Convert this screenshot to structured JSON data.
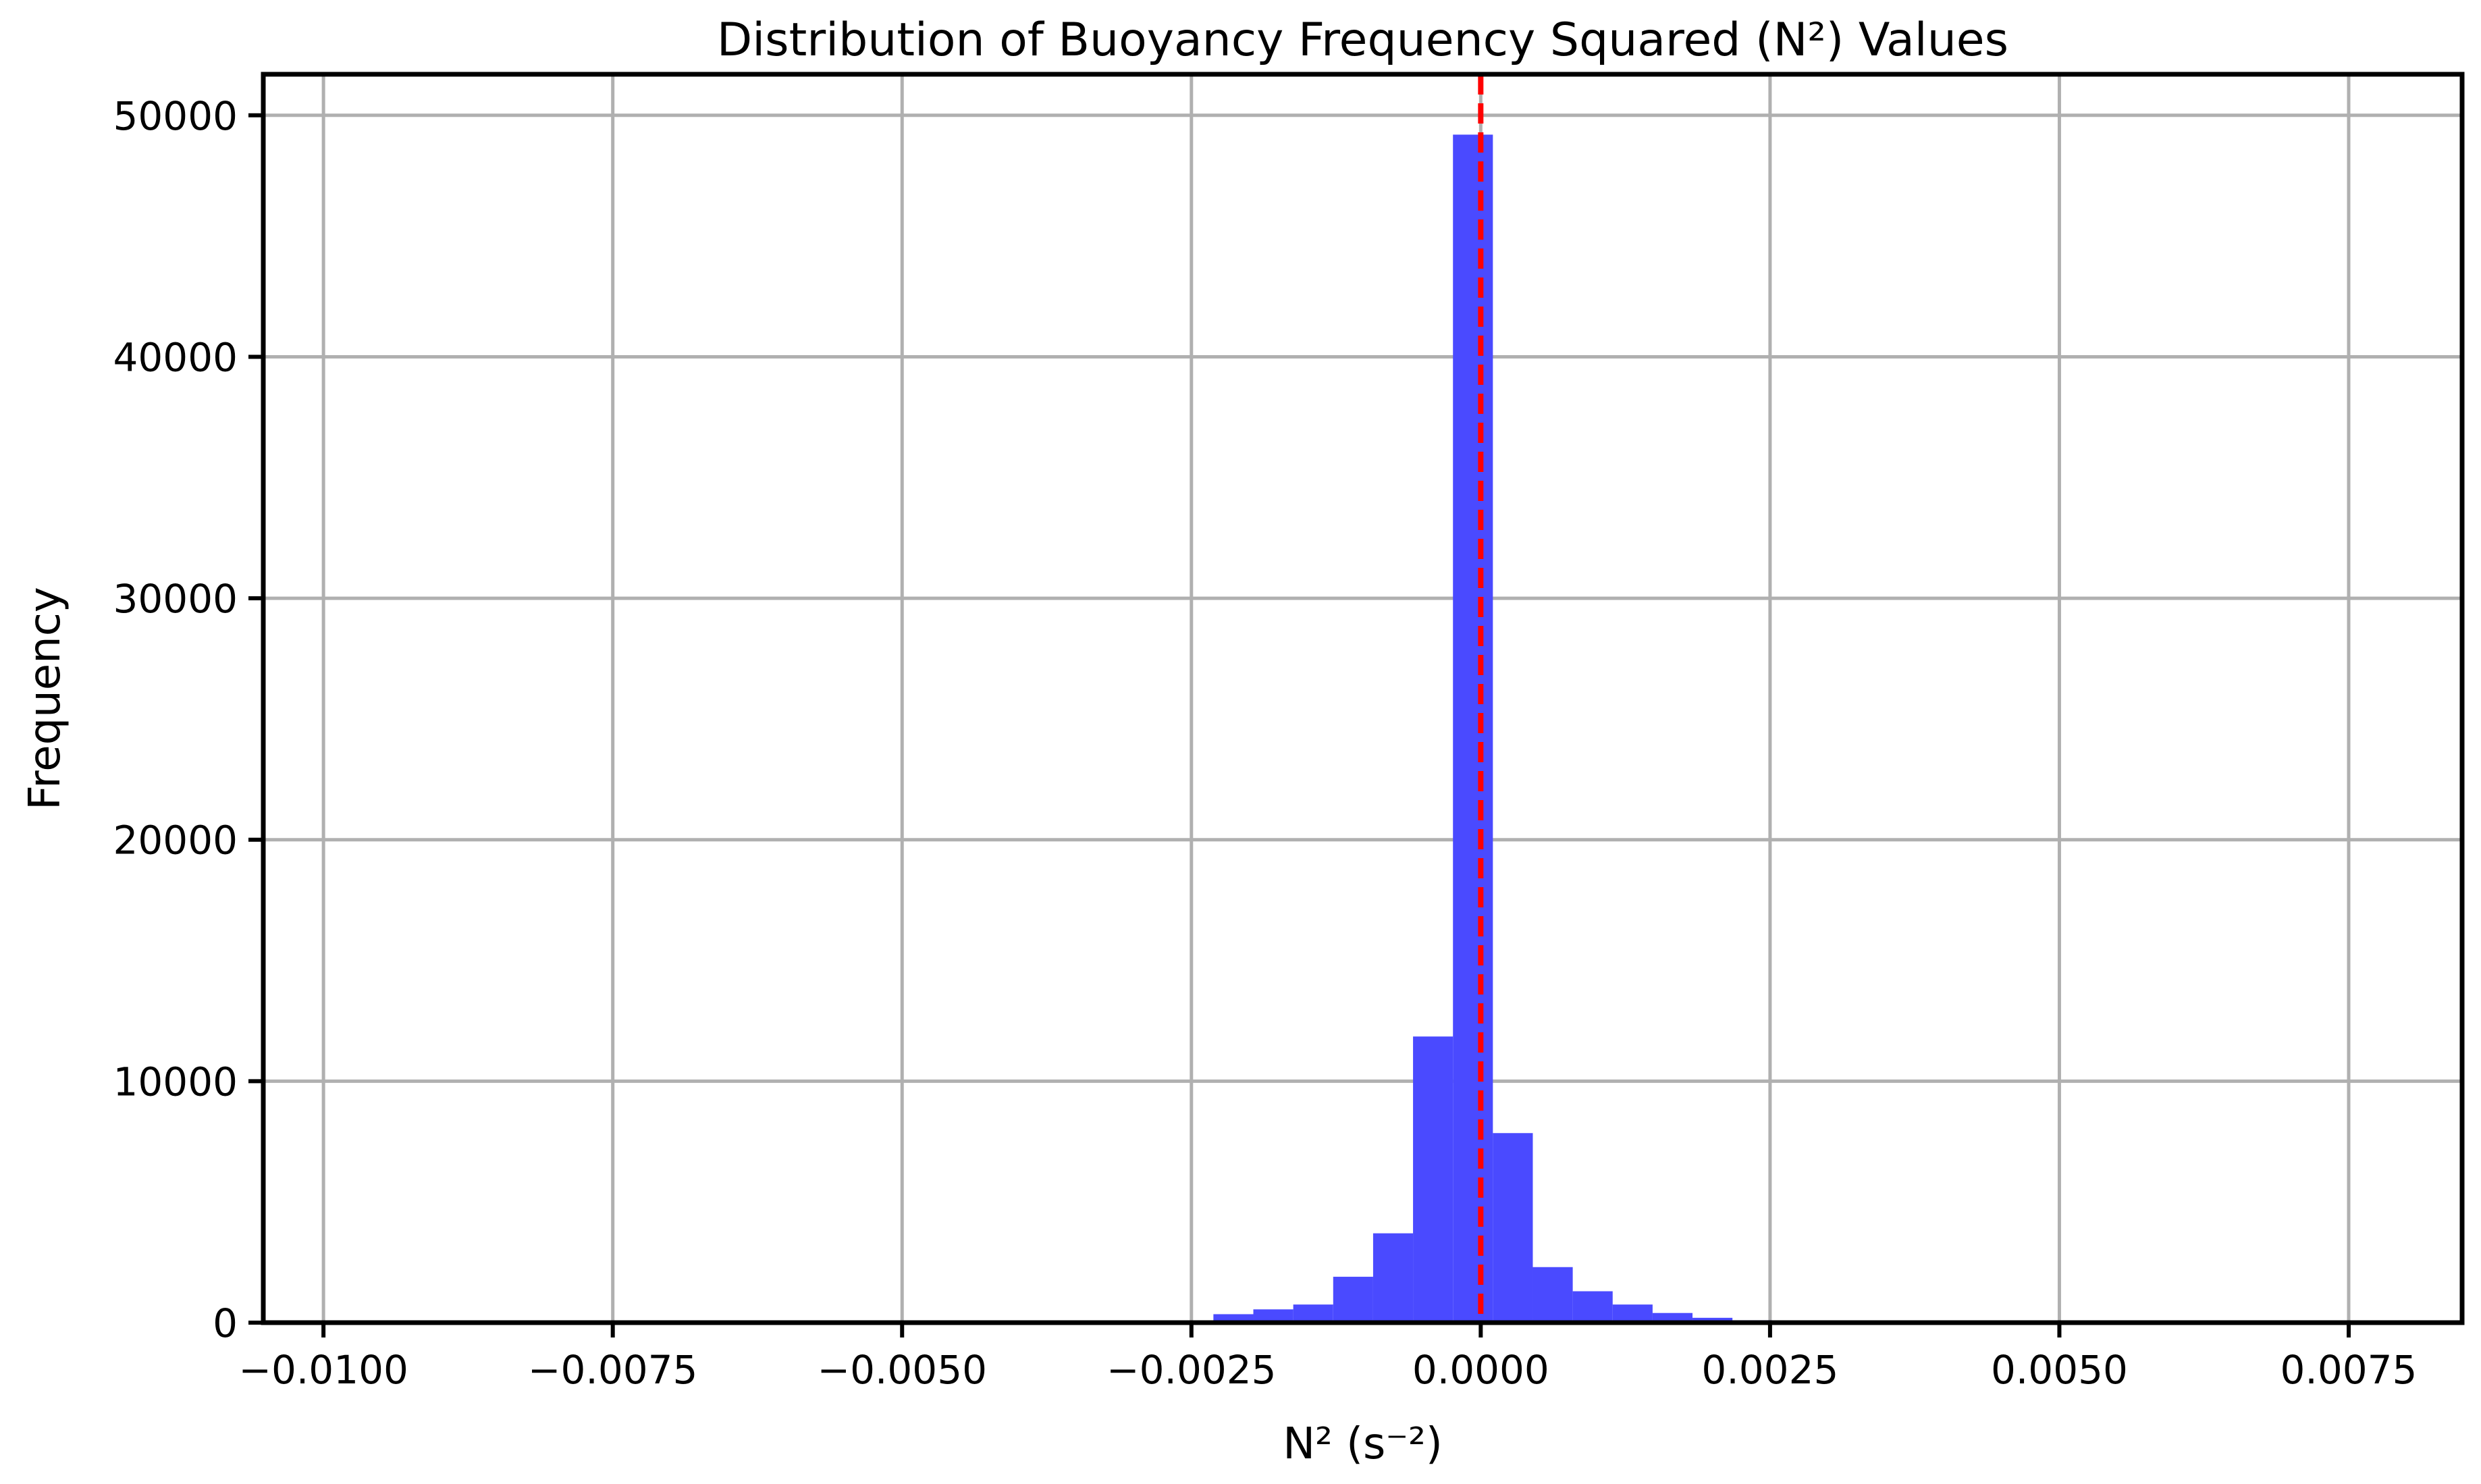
{
  "chart_data": {
    "type": "bar",
    "title": "Distribution of Buoyancy Frequency Squared (N²) Values",
    "xlabel": "N² (s⁻²)",
    "ylabel": "Frequency",
    "xlim": [
      -0.01052,
      0.00848
    ],
    "ylim": [
      0,
      51700
    ],
    "grid": true,
    "x_ticks": [
      {
        "value": -0.01,
        "label": "−0.0100"
      },
      {
        "value": -0.0075,
        "label": "−0.0075"
      },
      {
        "value": -0.005,
        "label": "−0.0050"
      },
      {
        "value": -0.0025,
        "label": "−0.0025"
      },
      {
        "value": 0.0,
        "label": "0.0000"
      },
      {
        "value": 0.0025,
        "label": "0.0025"
      },
      {
        "value": 0.005,
        "label": "0.0050"
      },
      {
        "value": 0.0075,
        "label": "0.0075"
      }
    ],
    "y_ticks": [
      {
        "value": 0,
        "label": "0"
      },
      {
        "value": 10000,
        "label": "10000"
      },
      {
        "value": 20000,
        "label": "20000"
      },
      {
        "value": 30000,
        "label": "30000"
      },
      {
        "value": 40000,
        "label": "40000"
      },
      {
        "value": 50000,
        "label": "50000"
      }
    ],
    "bin_width": 0.000345,
    "bar_color": "#4a4aff",
    "bins": [
      {
        "start": -0.00231,
        "count": 350
      },
      {
        "start": -0.001965,
        "count": 550
      },
      {
        "start": -0.00162,
        "count": 750
      },
      {
        "start": -0.001275,
        "count": 1900
      },
      {
        "start": -0.00093,
        "count": 3700
      },
      {
        "start": -0.000585,
        "count": 11850
      },
      {
        "start": -0.00024,
        "count": 49200
      },
      {
        "start": 0.000105,
        "count": 7850
      },
      {
        "start": 0.00045,
        "count": 2300
      },
      {
        "start": 0.000795,
        "count": 1300
      },
      {
        "start": 0.00114,
        "count": 750
      },
      {
        "start": 0.001485,
        "count": 400
      },
      {
        "start": 0.00183,
        "count": 200
      },
      {
        "start": 0.002175,
        "count": 100
      },
      {
        "start": 0.00252,
        "count": 50
      },
      {
        "start": 0.002865,
        "count": 60
      },
      {
        "start": 0.00321,
        "count": 40
      }
    ],
    "reference_line": {
      "value": 0.0,
      "color": "#ff0000",
      "style": "dashed"
    }
  }
}
